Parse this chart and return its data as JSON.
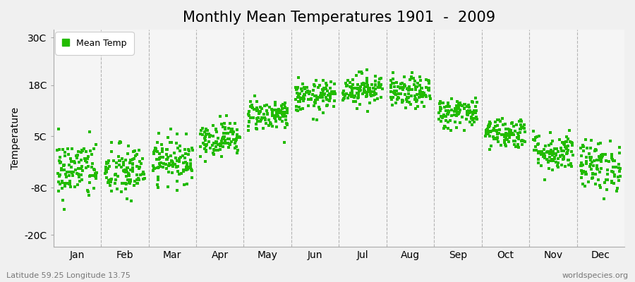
{
  "title": "Monthly Mean Temperatures 1901  -  2009",
  "ylabel": "Temperature",
  "yticks": [
    -20,
    -8,
    5,
    18,
    30
  ],
  "ytick_labels": [
    "-20C",
    "-8C",
    "5C",
    "18C",
    "30C"
  ],
  "ylim": [
    -23,
    32
  ],
  "xlim": [
    0,
    12
  ],
  "months": [
    "Jan",
    "Feb",
    "Mar",
    "Apr",
    "May",
    "Jun",
    "Jul",
    "Aug",
    "Sep",
    "Oct",
    "Nov",
    "Dec"
  ],
  "dot_color": "#22bb00",
  "dot_size": 6,
  "plot_bg_color": "#f5f5f5",
  "fig_bg_color": "#f0f0f0",
  "grid_color": "#999999",
  "title_fontsize": 15,
  "label_fontsize": 10,
  "tick_fontsize": 10,
  "bottom_left": "Latitude 59.25 Longitude 13.75",
  "bottom_right": "worldspecies.org",
  "legend_label": "Mean Temp",
  "num_years": 109,
  "monthly_means": [
    -3.5,
    -4.0,
    -1.0,
    4.5,
    10.5,
    15.0,
    17.0,
    16.0,
    11.0,
    6.0,
    1.0,
    -2.5
  ],
  "monthly_stds": [
    3.8,
    3.5,
    2.8,
    2.2,
    2.0,
    2.0,
    2.0,
    2.0,
    2.0,
    2.0,
    2.5,
    3.2
  ],
  "seed": 42
}
